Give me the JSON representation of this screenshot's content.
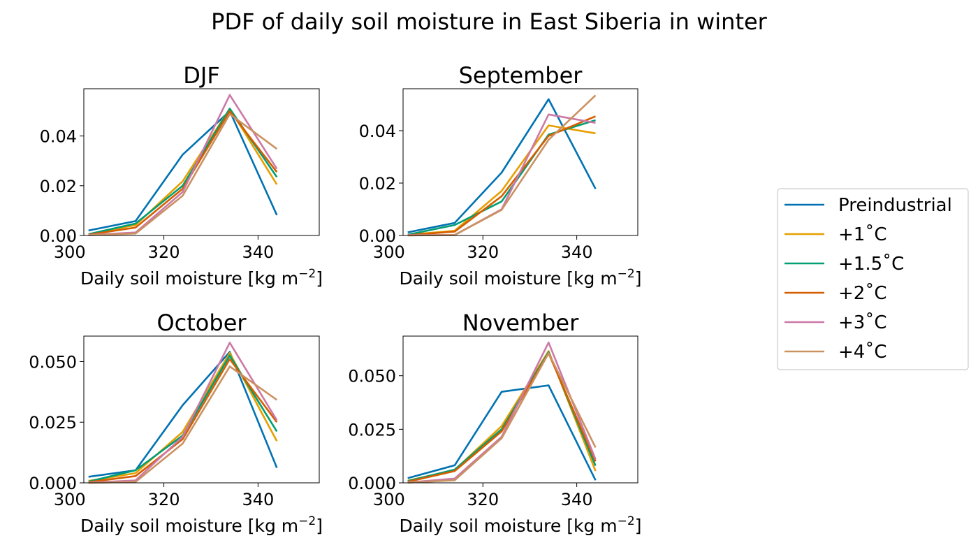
{
  "suptitle": "PDF of daily soil moisture in East Siberia in winter",
  "legend": {
    "placement": "right",
    "entries": [
      {
        "label": "Preindustrial",
        "color": "#0072b2"
      },
      {
        "label": "+1˚C",
        "color": "#e69f00"
      },
      {
        "label": "+1.5˚C",
        "color": "#009e73"
      },
      {
        "label": "+2˚C",
        "color": "#d55e00"
      },
      {
        "label": "+3˚C",
        "color": "#cc79a7"
      },
      {
        "label": "+4˚C",
        "color": "#ca9161"
      }
    ]
  },
  "chart_data": [
    {
      "type": "line",
      "title": "DJF",
      "xlabel": "Daily soil moisture [kg m",
      "xlabel_sup": "−2",
      "xlabel_end": "]",
      "xlim": [
        303,
        353
      ],
      "ylim": [
        0,
        0.059
      ],
      "xticks": [
        300,
        320,
        340
      ],
      "xtick_labels": [
        "300",
        "320",
        "340"
      ],
      "yticks": [
        0,
        0.02,
        0.04
      ],
      "ytick_labels": [
        "0.00",
        "0.02",
        "0.04"
      ],
      "x": [
        304,
        314,
        324,
        334,
        344
      ],
      "series": [
        {
          "name": "Preindustrial",
          "values": [
            0.002,
            0.0058,
            0.0325,
            0.05,
            0.0082
          ]
        },
        {
          "name": "+1˚C",
          "values": [
            0.0005,
            0.0042,
            0.0218,
            0.051,
            0.0205
          ]
        },
        {
          "name": "+1.5˚C",
          "values": [
            0.0005,
            0.0048,
            0.02,
            0.051,
            0.0235
          ]
        },
        {
          "name": "+2˚C",
          "values": [
            0.0003,
            0.0032,
            0.0188,
            0.05,
            0.0255
          ]
        },
        {
          "name": "+3˚C",
          "values": [
            0.0002,
            0.0012,
            0.0175,
            0.0565,
            0.0268
          ]
        },
        {
          "name": "+4˚C",
          "values": [
            0.0001,
            0.0008,
            0.016,
            0.0488,
            0.0348
          ]
        }
      ]
    },
    {
      "type": "line",
      "title": "September",
      "xlabel": "Daily soil moisture [kg m",
      "xlabel_sup": "−2",
      "xlabel_end": "]",
      "xlim": [
        303,
        353
      ],
      "ylim": [
        0,
        0.056
      ],
      "xticks": [
        300,
        320,
        340
      ],
      "xtick_labels": [
        "300",
        "320",
        "340"
      ],
      "yticks": [
        0,
        0.02,
        0.04
      ],
      "ytick_labels": [
        "0.00",
        "0.02",
        "0.04"
      ],
      "x": [
        304,
        314,
        324,
        334,
        344
      ],
      "series": [
        {
          "name": "Preindustrial",
          "values": [
            0.0012,
            0.0048,
            0.024,
            0.052,
            0.0178
          ]
        },
        {
          "name": "+1˚C",
          "values": [
            0.0003,
            0.0018,
            0.017,
            0.042,
            0.039
          ]
        },
        {
          "name": "+1.5˚C",
          "values": [
            0.0003,
            0.004,
            0.013,
            0.0385,
            0.044
          ]
        },
        {
          "name": "+2˚C",
          "values": [
            0.0001,
            0.0015,
            0.015,
            0.038,
            0.0455
          ]
        },
        {
          "name": "+3˚C",
          "values": [
            0.0001,
            0.0002,
            0.01,
            0.0462,
            0.043
          ]
        },
        {
          "name": "+4˚C",
          "values": [
            0.0,
            0.0002,
            0.0098,
            0.0365,
            0.0535
          ]
        }
      ]
    },
    {
      "type": "line",
      "title": "October",
      "xlabel": "Daily soil moisture [kg m",
      "xlabel_sup": "−2",
      "xlabel_end": "]",
      "xlim": [
        303,
        353
      ],
      "ylim": [
        0,
        0.0605
      ],
      "xticks": [
        300,
        320,
        340
      ],
      "xtick_labels": [
        "300",
        "320",
        "340"
      ],
      "yticks": [
        0,
        0.025,
        0.05
      ],
      "ytick_labels": [
        "0.000",
        "0.025",
        "0.050"
      ],
      "x": [
        304,
        314,
        324,
        334,
        344
      ],
      "series": [
        {
          "name": "Preindustrial",
          "values": [
            0.0025,
            0.0052,
            0.032,
            0.054,
            0.0062
          ]
        },
        {
          "name": "+1˚C",
          "values": [
            0.0008,
            0.004,
            0.021,
            0.0535,
            0.0172
          ]
        },
        {
          "name": "+1.5˚C",
          "values": [
            0.0005,
            0.0052,
            0.0195,
            0.0525,
            0.0212
          ]
        },
        {
          "name": "+2˚C",
          "values": [
            0.0003,
            0.0028,
            0.018,
            0.051,
            0.025
          ]
        },
        {
          "name": "+3˚C",
          "values": [
            0.0001,
            0.001,
            0.019,
            0.0578,
            0.0258
          ]
        },
        {
          "name": "+4˚C",
          "values": [
            0.0,
            0.0004,
            0.0162,
            0.048,
            0.0342
          ]
        }
      ]
    },
    {
      "type": "line",
      "title": "November",
      "xlabel": "Daily soil moisture [kg m",
      "xlabel_sup": "−2",
      "xlabel_end": "]",
      "xlim": [
        303,
        353
      ],
      "ylim": [
        0,
        0.0685
      ],
      "xticks": [
        300,
        320,
        340
      ],
      "xtick_labels": [
        "300",
        "320",
        "340"
      ],
      "yticks": [
        0,
        0.025,
        0.05
      ],
      "ytick_labels": [
        "0.000",
        "0.025",
        "0.050"
      ],
      "x": [
        304,
        314,
        324,
        334,
        344
      ],
      "series": [
        {
          "name": "Preindustrial",
          "values": [
            0.0022,
            0.0082,
            0.0425,
            0.0455,
            0.0012
          ]
        },
        {
          "name": "+1˚C",
          "values": [
            0.001,
            0.006,
            0.0265,
            0.0615,
            0.0055
          ]
        },
        {
          "name": "+1.5˚C",
          "values": [
            0.0008,
            0.0062,
            0.025,
            0.061,
            0.008
          ]
        },
        {
          "name": "+2˚C",
          "values": [
            0.0005,
            0.0055,
            0.024,
            0.0605,
            0.01
          ]
        },
        {
          "name": "+3˚C",
          "values": [
            0.0002,
            0.002,
            0.0215,
            0.0655,
            0.011
          ]
        },
        {
          "name": "+4˚C",
          "values": [
            0.0001,
            0.0012,
            0.0208,
            0.0605,
            0.0165
          ]
        }
      ]
    }
  ]
}
